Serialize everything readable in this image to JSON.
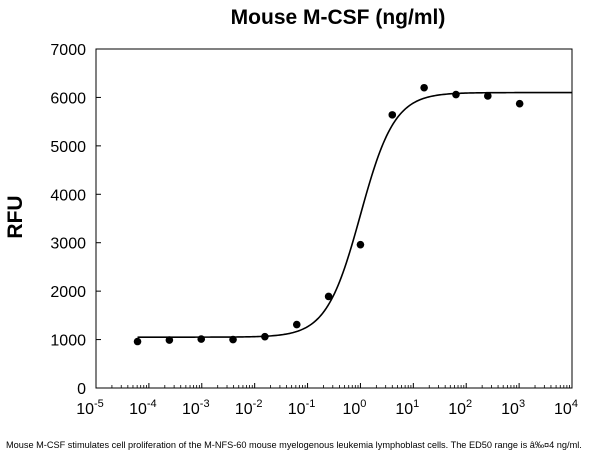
{
  "chart_data": {
    "type": "scatter",
    "title": "Mouse M-CSF (ng/ml)",
    "xlabel": "",
    "ylabel": "RFU",
    "x_scale": "log10",
    "xlim": [
      1e-05,
      10000
    ],
    "ylim": [
      0,
      7000
    ],
    "grid": false,
    "legend": "none",
    "y_ticks": [
      0,
      1000,
      2000,
      3000,
      4000,
      5000,
      6000,
      7000
    ],
    "y_tick_labels": [
      "0",
      "1000",
      "2000",
      "3000",
      "4000",
      "5000",
      "6000",
      "7000"
    ],
    "x_ticks": [
      1e-05,
      0.0001,
      0.001,
      0.01,
      0.1,
      1,
      10,
      100,
      1000,
      10000
    ],
    "x_tick_labels": [
      {
        "base": "10",
        "exp": "-5"
      },
      {
        "base": "10",
        "exp": "-4"
      },
      {
        "base": "10",
        "exp": "-3"
      },
      {
        "base": "10",
        "exp": "-2"
      },
      {
        "base": "10",
        "exp": "-1"
      },
      {
        "base": "10",
        "exp": "0"
      },
      {
        "base": "10",
        "exp": "1"
      },
      {
        "base": "10",
        "exp": "2"
      },
      {
        "base": "10",
        "exp": "3"
      },
      {
        "base": "10",
        "exp": "4"
      }
    ],
    "points": {
      "x": [
        6.1e-05,
        0.000244,
        0.000977,
        0.0039,
        0.0156,
        0.0625,
        0.25,
        1.0,
        4.0,
        16.0,
        64.0,
        256.0,
        1024.0
      ],
      "y": [
        960,
        990,
        1010,
        1000,
        1060,
        1310,
        1890,
        2960,
        5640,
        6200,
        6060,
        6030,
        5870
      ]
    },
    "fit_curve": {
      "model": "4PL",
      "bottom": 1050,
      "top": 6100,
      "ec50": 1.0,
      "hill": 1.35
    }
  },
  "caption": "Mouse M-CSF stimulates cell proliferation of the M-NFS-60 mouse myelogenous leukemia lymphoblast cells. The ED50 range is â‰¤4 ng/ml."
}
